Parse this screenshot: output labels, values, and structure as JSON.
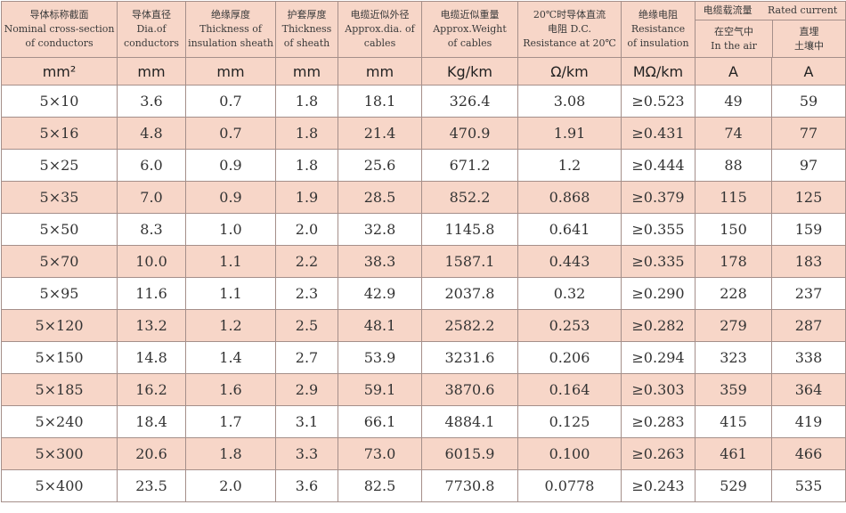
{
  "headers": {
    "nominal": {
      "cn": "导体标称截面",
      "en1": "Nominal cross-section",
      "en2": "of conductors"
    },
    "dia": {
      "cn": "导体直径",
      "en1": "Dia.of",
      "en2": "conductors"
    },
    "insulation": {
      "cn": "绝缘厚度",
      "en1": "Thickness of",
      "en2": "insulation sheath"
    },
    "sheath": {
      "cn": "护套厚度",
      "en1": "Thickness",
      "en2": "of sheath"
    },
    "outer_dia": {
      "cn": "电缆近似外径",
      "en1": "Approx.dia. of",
      "en2": "cables"
    },
    "weight": {
      "cn": "电缆近似重量",
      "en1": "Approx.Weight",
      "en2": "of cables"
    },
    "resistance": {
      "cn": "20℃时导体直流",
      "en1": "电阻 D.C.",
      "en2": "Resistance at 20℃"
    },
    "ins_resistance": {
      "cn": "绝缘电阻",
      "en1": "Resistance",
      "en2": "of insulation"
    },
    "rated": {
      "cn": "电缆载流量",
      "en": "Rated current"
    },
    "air": {
      "cn": "在空气中",
      "en": "In the air"
    },
    "soil": {
      "cn": "直埋",
      "en": "土壤中"
    }
  },
  "units": [
    "mm²",
    "mm",
    "mm",
    "mm",
    "mm",
    "Kg/km",
    "Ω/km",
    "MΩ/km",
    "A",
    "A"
  ],
  "rows": [
    [
      "5×10",
      "3.6",
      "0.7",
      "1.8",
      "18.1",
      "326.4",
      "3.08",
      "≥0.523",
      "49",
      "59"
    ],
    [
      "5×16",
      "4.8",
      "0.7",
      "1.8",
      "21.4",
      "470.9",
      "1.91",
      "≥0.431",
      "74",
      "77"
    ],
    [
      "5×25",
      "6.0",
      "0.9",
      "1.8",
      "25.6",
      "671.2",
      "1.2",
      "≥0.444",
      "88",
      "97"
    ],
    [
      "5×35",
      "7.0",
      "0.9",
      "1.9",
      "28.5",
      "852.2",
      "0.868",
      "≥0.379",
      "115",
      "125"
    ],
    [
      "5×50",
      "8.3",
      "1.0",
      "2.0",
      "32.8",
      "1145.8",
      "0.641",
      "≥0.355",
      "150",
      "159"
    ],
    [
      "5×70",
      "10.0",
      "1.1",
      "2.2",
      "38.3",
      "1587.1",
      "0.443",
      "≥0.335",
      "178",
      "183"
    ],
    [
      "5×95",
      "11.6",
      "1.1",
      "2.3",
      "42.9",
      "2037.8",
      "0.32",
      "≥0.290",
      "228",
      "237"
    ],
    [
      "5×120",
      "13.2",
      "1.2",
      "2.5",
      "48.1",
      "2582.2",
      "0.253",
      "≥0.282",
      "279",
      "287"
    ],
    [
      "5×150",
      "14.8",
      "1.4",
      "2.7",
      "53.9",
      "3231.6",
      "0.206",
      "≥0.294",
      "323",
      "338"
    ],
    [
      "5×185",
      "16.2",
      "1.6",
      "2.9",
      "59.1",
      "3870.6",
      "0.164",
      "≥0.303",
      "359",
      "364"
    ],
    [
      "5×240",
      "18.4",
      "1.7",
      "3.1",
      "66.1",
      "4884.1",
      "0.125",
      "≥0.283",
      "415",
      "419"
    ],
    [
      "5×300",
      "20.6",
      "1.8",
      "3.3",
      "73.0",
      "6015.9",
      "0.100",
      "≥0.263",
      "461",
      "466"
    ],
    [
      "5×400",
      "23.5",
      "2.0",
      "3.6",
      "82.5",
      "7730.8",
      "0.0778",
      "≥0.243",
      "529",
      "535"
    ]
  ],
  "colors": {
    "band": "#f7d6c8",
    "border": "#a58f8a",
    "text": "#333333"
  }
}
